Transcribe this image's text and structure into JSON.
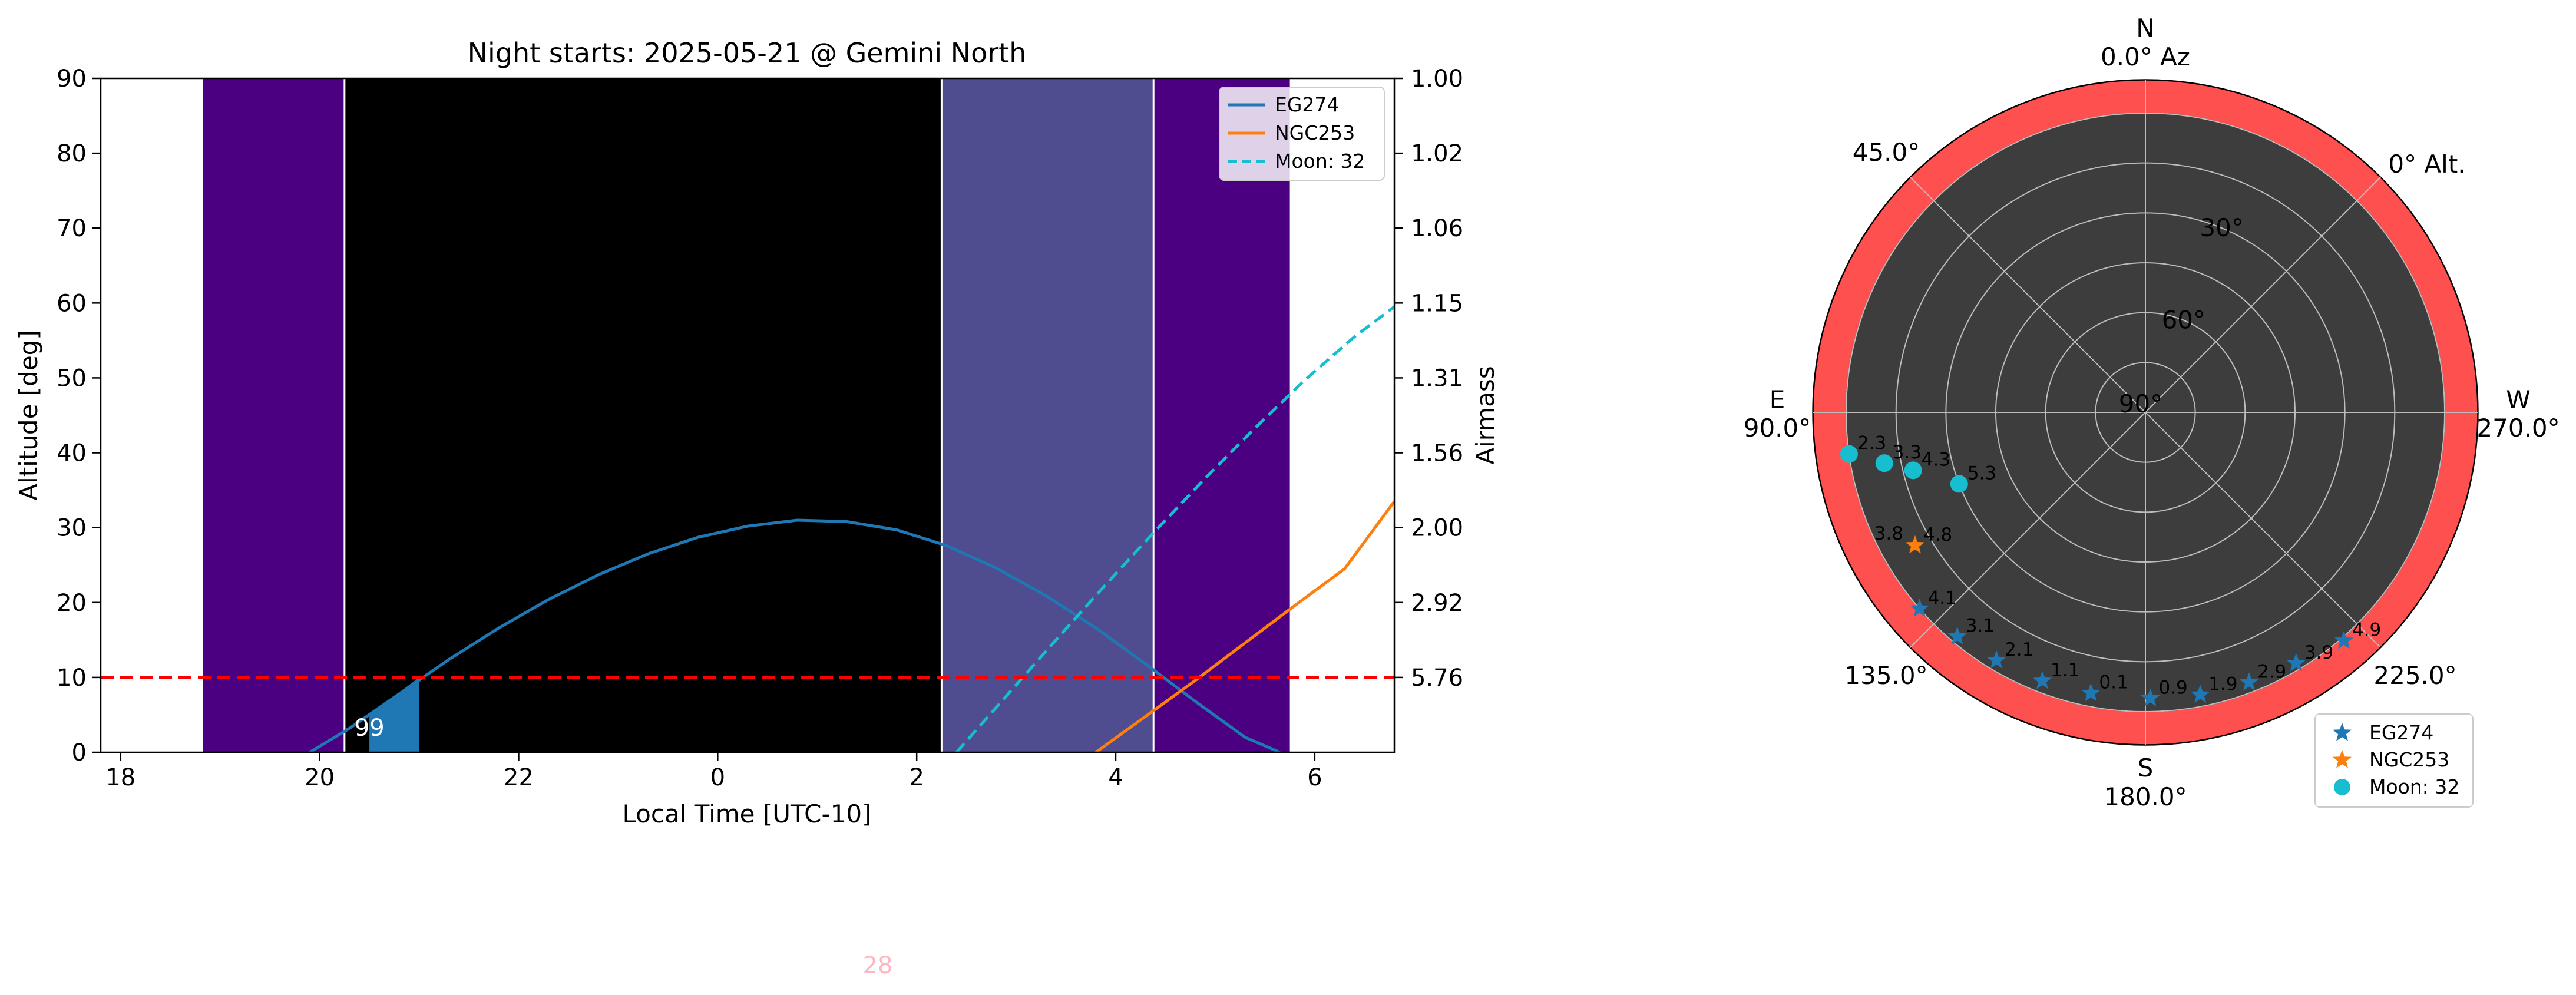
{
  "chart_data": [
    {
      "type": "line",
      "title": "Night starts: 2025-05-21 @ Gemini North",
      "xlabel": "Local Time [UTC-10]",
      "ylabel": "Altitude [deg]",
      "y2label": "Airmass",
      "xlim": [
        17.8,
        30.8
      ],
      "ylim": [
        0,
        90
      ],
      "x_ticks": [
        18,
        20,
        22,
        24,
        26,
        28,
        30
      ],
      "x_tick_labels": [
        "18",
        "20",
        "22",
        "0",
        "2",
        "4",
        "6"
      ],
      "y_ticks": [
        0,
        10,
        20,
        30,
        40,
        50,
        60,
        70,
        80,
        90
      ],
      "y_tick_labels": [
        "0",
        "10",
        "20",
        "30",
        "40",
        "50",
        "60",
        "70",
        "80",
        "90"
      ],
      "airmass_ticks": [
        {
          "alt": 10,
          "label": "5.76"
        },
        {
          "alt": 20,
          "label": "2.92"
        },
        {
          "alt": 30,
          "label": "2.00"
        },
        {
          "alt": 40,
          "label": "1.56"
        },
        {
          "alt": 50,
          "label": "1.31"
        },
        {
          "alt": 60,
          "label": "1.15"
        },
        {
          "alt": 70,
          "label": "1.06"
        },
        {
          "alt": 80,
          "label": "1.02"
        },
        {
          "alt": 90,
          "label": "1.00"
        }
      ],
      "twilight_bands": [
        {
          "start": 18.83,
          "end": 20.25,
          "color": "#4b0082"
        },
        {
          "start": 20.25,
          "end": 26.25,
          "color": "#000000"
        },
        {
          "start": 26.25,
          "end": 28.38,
          "color": "#4f4c8f"
        },
        {
          "start": 28.38,
          "end": 29.75,
          "color": "#4b0082"
        }
      ],
      "band_boundaries": [
        20.25,
        26.25,
        28.38
      ],
      "horizon_limit": 10,
      "series": [
        {
          "name": "EG274",
          "color": "#1f77b4",
          "style": "solid",
          "x": [
            19.9,
            20.3,
            20.8,
            21.3,
            21.8,
            22.3,
            22.8,
            23.3,
            23.8,
            24.3,
            24.8,
            25.3,
            25.8,
            26.3,
            26.8,
            27.3,
            27.8,
            28.3,
            28.8,
            29.3,
            29.65
          ],
          "y": [
            0,
            3.2,
            7.8,
            12.4,
            16.6,
            20.4,
            23.7,
            26.5,
            28.7,
            30.2,
            31.0,
            30.8,
            29.7,
            27.6,
            24.6,
            20.9,
            16.6,
            11.8,
            6.8,
            2.0,
            0
          ]
        },
        {
          "name": "NGC253",
          "color": "#ff7f0e",
          "style": "solid",
          "x": [
            27.8,
            28.3,
            28.8,
            29.3,
            29.8,
            30.3,
            30.8
          ],
          "y": [
            0,
            4.8,
            9.6,
            14.6,
            19.6,
            24.5,
            33.5
          ]
        },
        {
          "name": "Moon: 32",
          "color": "#17becf",
          "style": "dashed",
          "x": [
            26.4,
            26.9,
            27.4,
            27.9,
            28.4,
            28.9,
            29.4,
            29.9,
            30.4,
            30.8
          ],
          "y": [
            0,
            7.5,
            15.0,
            22.4,
            29.6,
            36.6,
            43.3,
            49.7,
            55.5,
            59.5
          ]
        }
      ],
      "observable_fill": {
        "color": "#1f77b4",
        "x": [
          20.5,
          20.75,
          21.0
        ],
        "top": [
          5.0,
          7.5,
          10.0
        ],
        "label": "99",
        "label_x": 20.35,
        "label_y": 2.2
      },
      "legend": {
        "placement": "top-right",
        "entries": [
          "EG274",
          "NGC253",
          "Moon: 32"
        ]
      },
      "grid": false,
      "extra_text": {
        "text": "28",
        "color": "#ffb6c1"
      }
    },
    {
      "type": "polar-scatter",
      "compass": {
        "N": "N",
        "N_az": "0.0° Az",
        "E": "E",
        "E_az": "90.0°",
        "W": "W",
        "W_az": "270.0°",
        "S": "S",
        "S_az": "180.0°",
        "NE_label": "45.0°",
        "SE_label": "135.0°",
        "SW_label": "225.0°",
        "alt_label": "0° Alt."
      },
      "ring_labels": [
        {
          "alt": 30,
          "text": "30°"
        },
        {
          "alt": 60,
          "text": "60°"
        },
        {
          "alt": 90,
          "text": "90°"
        }
      ],
      "rings_alt": [
        0,
        15,
        30,
        45,
        60,
        75
      ],
      "outer_alt": -10,
      "outer_color": "#ff5050",
      "inner_color": "#3d3d3d",
      "series": [
        {
          "name": "EG274",
          "color": "#1f77b4",
          "marker": "star",
          "points": [
            {
              "az": 131,
              "alt": 0,
              "label": "4.1"
            },
            {
              "az": 140,
              "alt": 2,
              "label": "3.1"
            },
            {
              "az": 149,
              "alt": 3,
              "label": "2.1"
            },
            {
              "az": 159,
              "alt": 3.5,
              "label": "1.1"
            },
            {
              "az": 169,
              "alt": 4,
              "label": "0.1"
            },
            {
              "az": 181,
              "alt": 4,
              "label": "0.9"
            },
            {
              "az": 191,
              "alt": 3.5,
              "label": "1.9"
            },
            {
              "az": 201,
              "alt": 3,
              "label": "2.9"
            },
            {
              "az": 211,
              "alt": 2,
              "label": "3.9"
            },
            {
              "az": 221,
              "alt": -1,
              "label": "4.9"
            }
          ]
        },
        {
          "name": "NGC253",
          "color": "#ff7f0e",
          "marker": "star",
          "points": [
            {
              "az": 120,
              "alt": 10,
              "label": "4.8",
              "label2": "3.8"
            }
          ]
        },
        {
          "name": "Moon: 32",
          "color": "#17becf",
          "marker": "circle",
          "points": [
            {
              "az": 98,
              "alt": 0,
              "label": "2.3"
            },
            {
              "az": 101,
              "alt": 10,
              "label": "3.3"
            },
            {
              "az": 104,
              "alt": 18,
              "label": "4.3"
            },
            {
              "az": 111,
              "alt": 30,
              "label": "5.3"
            }
          ]
        }
      ],
      "legend": {
        "placement": "lower-right",
        "entries": [
          "EG274",
          "NGC253",
          "Moon: 32"
        ]
      }
    }
  ]
}
